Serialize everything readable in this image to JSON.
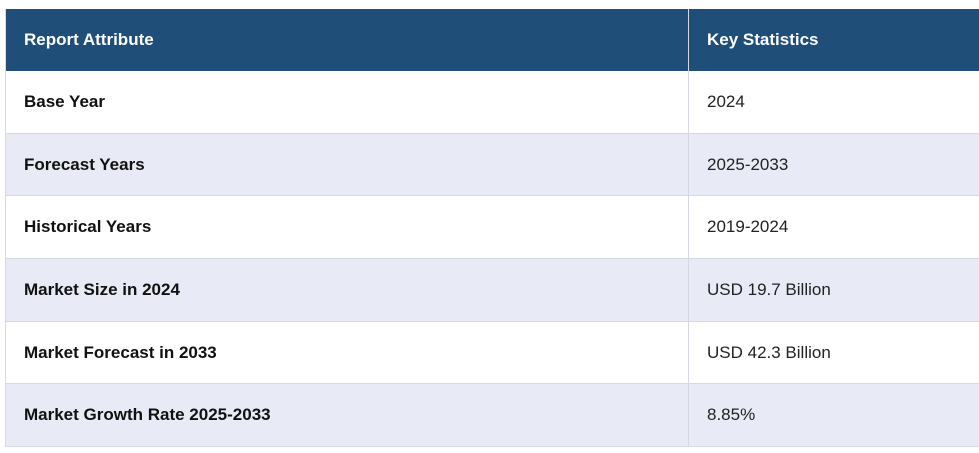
{
  "table": {
    "header": [
      "Report Attribute",
      "Key Statistics"
    ],
    "rows": [
      [
        "Base Year",
        "2024"
      ],
      [
        "Forecast Years",
        "2025-2033"
      ],
      [
        "Historical Years",
        "2019-2024"
      ],
      [
        "Market Size in 2024",
        "USD 19.7 Billion"
      ],
      [
        "Market Forecast in 2033",
        "USD 42.3 Billion"
      ],
      [
        "Market Growth Rate 2025-2033",
        "8.85%"
      ]
    ]
  }
}
